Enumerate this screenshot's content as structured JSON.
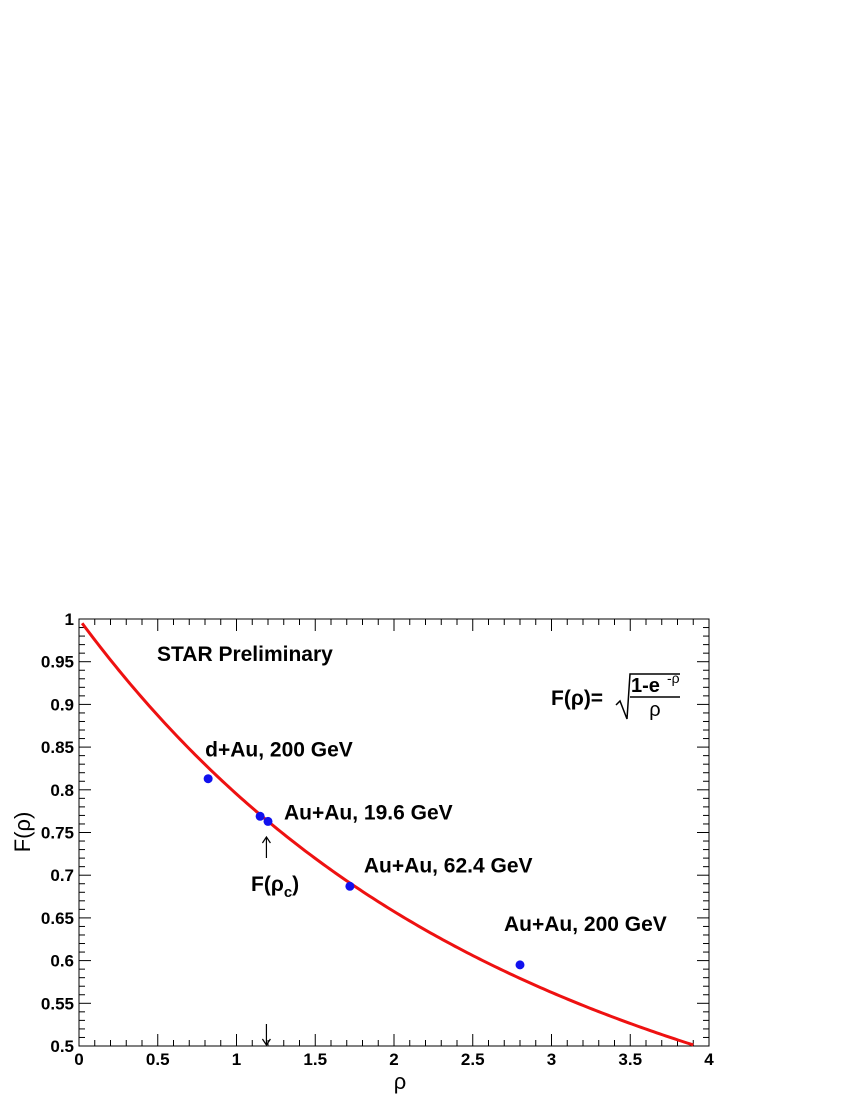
{
  "chart_data": {
    "type": "scatter",
    "title": "",
    "xlabel": "ρ",
    "ylabel": "F(ρ)",
    "xlim": [
      0,
      4
    ],
    "ylim": [
      0.5,
      1.0
    ],
    "x_ticks": [
      "0",
      "0.5",
      "1",
      "1.5",
      "2",
      "2.5",
      "3",
      "3.5",
      "4"
    ],
    "y_ticks": [
      "0.5",
      "0.55",
      "0.6",
      "0.65",
      "0.7",
      "0.75",
      "0.8",
      "0.85",
      "0.9",
      "0.95",
      "1"
    ],
    "header_text": "STAR Preliminary",
    "formula": {
      "lhs": "F(ρ)=",
      "numerator": "1-e",
      "exponent": "-ρ",
      "denominator": "ρ"
    },
    "points": [
      {
        "x": 0.82,
        "y": 0.813,
        "label": "d+Au, 200 GeV"
      },
      {
        "x": 1.15,
        "y": 0.769,
        "label": ""
      },
      {
        "x": 1.2,
        "y": 0.763,
        "label": "Au+Au, 19.6 GeV"
      },
      {
        "x": 1.72,
        "y": 0.687,
        "label": "Au+Au, 62.4 GeV"
      },
      {
        "x": 2.8,
        "y": 0.595,
        "label": "Au+Au, 200 GeV"
      }
    ],
    "curve": {
      "function": "sqrt((1-exp(-x))/x)",
      "x_range": [
        0,
        3.9
      ],
      "color": "#ee1111"
    },
    "marker_color": "#1111ee",
    "critical_marker": {
      "x": 1.19,
      "label_main": "F(ρ",
      "label_sub": "c",
      "label_close": ")"
    },
    "grid": false,
    "legend": "none"
  }
}
